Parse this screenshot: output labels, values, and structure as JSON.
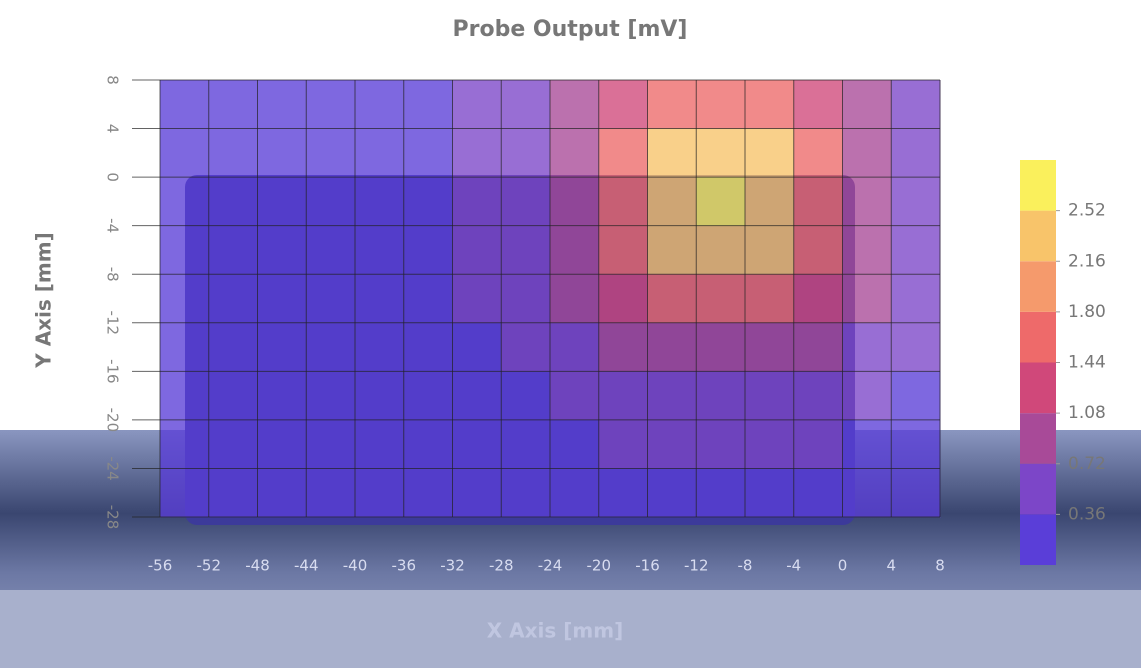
{
  "chart_data": {
    "type": "heatmap",
    "title": "Probe Output [mV]",
    "x_label": "X Axis [mm]",
    "y_label": "Y Axis [mm]",
    "x": [
      -54,
      -50,
      -46,
      -42,
      -38,
      -34,
      -30,
      -26,
      -22,
      -18,
      -14,
      -10,
      -6,
      -2,
      2,
      6
    ],
    "y": [
      6,
      2,
      -2,
      -6,
      -10,
      -14,
      -18,
      -22,
      -26
    ],
    "z": [
      [
        0.3,
        0.3,
        0.3,
        0.3,
        0.3,
        0.31,
        0.36,
        0.5,
        0.78,
        1.19,
        1.6,
        1.76,
        1.6,
        1.19,
        0.78,
        0.5
      ],
      [
        0.3,
        0.3,
        0.3,
        0.3,
        0.3,
        0.32,
        0.39,
        0.59,
        1.0,
        1.6,
        2.17,
        2.41,
        2.17,
        1.6,
        1.0,
        0.59
      ],
      [
        0.3,
        0.3,
        0.3,
        0.3,
        0.3,
        0.33,
        0.41,
        0.64,
        1.07,
        1.76,
        2.41,
        2.7,
        2.41,
        1.76,
        1.07,
        0.64
      ],
      [
        0.3,
        0.3,
        0.3,
        0.3,
        0.3,
        0.32,
        0.39,
        0.59,
        1.0,
        1.6,
        2.17,
        2.41,
        2.17,
        1.6,
        1.0,
        0.59
      ],
      [
        0.3,
        0.3,
        0.3,
        0.3,
        0.3,
        0.31,
        0.36,
        0.5,
        0.78,
        1.19,
        1.6,
        1.76,
        1.6,
        1.19,
        0.78,
        0.5
      ],
      [
        0.3,
        0.3,
        0.3,
        0.3,
        0.3,
        0.3,
        0.33,
        0.41,
        0.55,
        0.78,
        1.0,
        1.07,
        1.0,
        0.78,
        0.55,
        0.41
      ],
      [
        0.3,
        0.3,
        0.3,
        0.3,
        0.3,
        0.3,
        0.31,
        0.34,
        0.41,
        0.5,
        0.59,
        0.64,
        0.59,
        0.5,
        0.41,
        0.34
      ],
      [
        0.3,
        0.3,
        0.3,
        0.3,
        0.3,
        0.3,
        0.3,
        0.31,
        0.33,
        0.36,
        0.39,
        0.41,
        0.39,
        0.36,
        0.33,
        0.31
      ],
      [
        0.3,
        0.3,
        0.3,
        0.3,
        0.3,
        0.3,
        0.3,
        0.3,
        0.3,
        0.31,
        0.32,
        0.33,
        0.32,
        0.31,
        0.3,
        0.3
      ]
    ],
    "xlim": [
      -56,
      8
    ],
    "xticks": [
      -56,
      -52,
      -48,
      -44,
      -40,
      -36,
      -32,
      -28,
      -24,
      -20,
      -16,
      -12,
      -8,
      -4,
      0,
      4,
      8
    ],
    "ylim": [
      -28,
      8
    ],
    "yticks": [
      8,
      4,
      0,
      -4,
      -8,
      -12,
      -16,
      -20,
      -24,
      -28
    ],
    "clim": [
      0,
      2.88
    ],
    "cticks": [
      0.36,
      0.72,
      1.08,
      1.44,
      {
        "value": 1.8,
        "label": "1.80"
      },
      2.16,
      2.52
    ],
    "colors": [
      "#5a3ed8",
      "#7c46c8",
      "#a84a98",
      "#d0487a",
      "#ee6a6a",
      "#f59a6c",
      "#f8c46a",
      "#faf05c"
    ],
    "grid": true
  }
}
